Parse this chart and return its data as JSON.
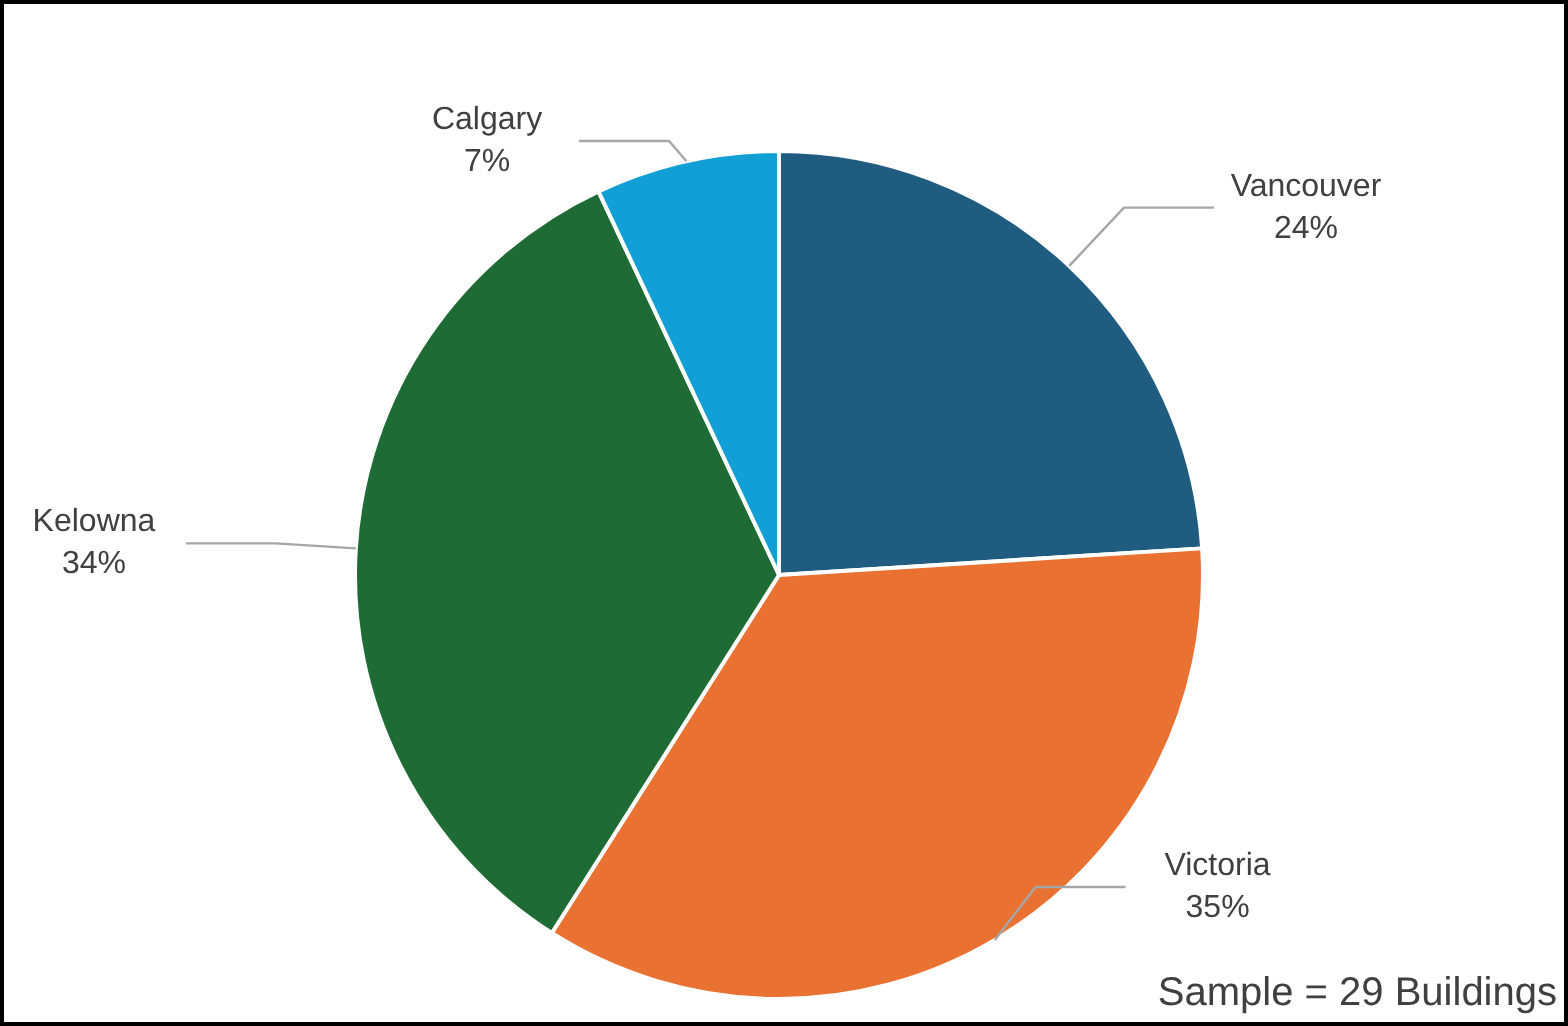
{
  "chart_data": {
    "type": "pie",
    "categories": [
      "Vancouver",
      "Victoria",
      "Kelowna",
      "Calgary"
    ],
    "values": [
      24,
      35,
      34,
      7
    ],
    "value_labels": [
      "24%",
      "35%",
      "34%",
      "7%"
    ],
    "colors": [
      "#1f5c7f",
      "#e97132",
      "#1e6b35",
      "#129fd6"
    ],
    "annotations": [
      "Sample = 29 Buildings"
    ]
  }
}
